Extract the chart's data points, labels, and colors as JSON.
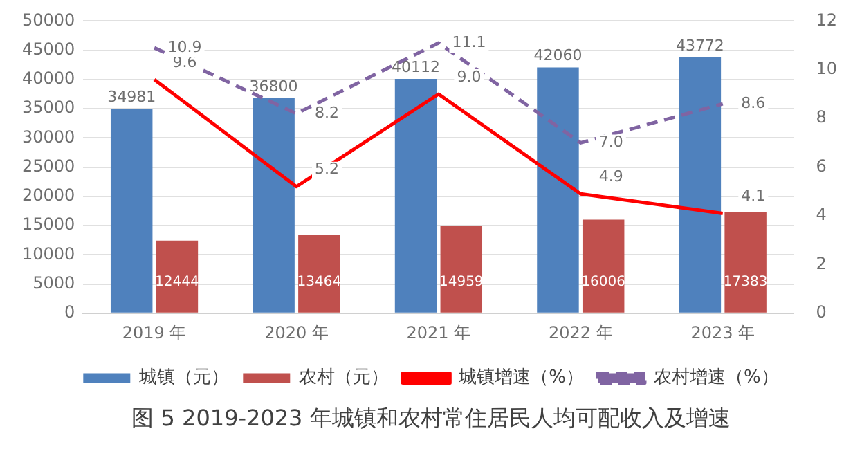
{
  "chart_data": {
    "type": "bar",
    "title": "图 5 2019-2023 年城镇和农村常住居民人均可配收入及增速",
    "categories": [
      "2019 年",
      "2020 年",
      "2021 年",
      "2022 年",
      "2023 年"
    ],
    "series": [
      {
        "name": "城镇（元）",
        "color": "#4f81bd",
        "values": [
          34981,
          36800,
          40112,
          42060,
          43772
        ],
        "value_labels": [
          "34981",
          "36800",
          "40112",
          "42060",
          "43772"
        ]
      },
      {
        "name": "农村（元）",
        "color": "#c0504d",
        "values": [
          12444,
          13464,
          14959,
          16006,
          17383
        ],
        "value_labels": [
          "12444",
          "13464",
          "14959",
          "16006",
          "17383"
        ]
      },
      {
        "name": "城镇增速（%）",
        "type": "line",
        "axis": "y2",
        "color": "#ff0000",
        "line_style": "solid",
        "values": [
          9.6,
          5.2,
          9.0,
          4.9,
          4.1
        ],
        "value_labels": [
          "9.6",
          "5.2",
          "9.0",
          "4.9",
          "4.1"
        ]
      },
      {
        "name": "农村增速（%）",
        "type": "line",
        "axis": "y2",
        "color": "#8064a2",
        "line_style": "dashed",
        "values": [
          10.9,
          8.2,
          11.1,
          7.0,
          8.6
        ],
        "value_labels": [
          "10.9",
          "8.2",
          "11.1",
          "7.0",
          "8.6"
        ]
      }
    ],
    "ylim": [
      0,
      50000
    ],
    "yticks": [
      0,
      5000,
      10000,
      15000,
      20000,
      25000,
      30000,
      35000,
      40000,
      45000,
      50000
    ],
    "y2lim": [
      0,
      12
    ],
    "y2ticks": [
      0,
      2,
      4,
      6,
      8,
      10,
      12
    ],
    "grid": "y",
    "legend": "bottom",
    "marker": "none"
  }
}
